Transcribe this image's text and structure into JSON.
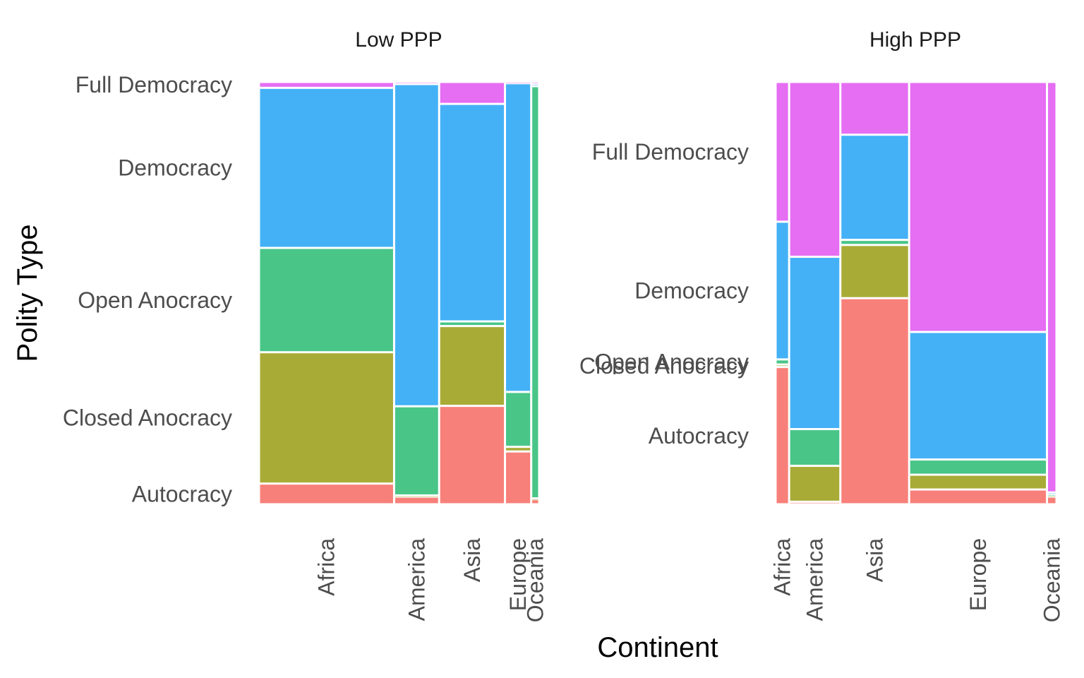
{
  "chart_data": {
    "type": "mosaic",
    "xlabel": "Continent",
    "ylabel": "Polity Type",
    "levels": [
      "Autocracy",
      "Closed Anocracy",
      "Open Anocracy",
      "Democracy",
      "Full Democracy"
    ],
    "colors": {
      "Autocracy": "#F8807A",
      "Closed Anocracy": "#A8AB36",
      "Open Anocracy": "#48C587",
      "Democracy": "#44B1F6",
      "Full Democracy": "#E56EF2"
    },
    "facets": [
      {
        "title": "Low PPP",
        "continents": [
          {
            "name": "Africa",
            "width": 0.474,
            "shares": [
              0.049,
              0.311,
              0.247,
              0.379,
              0.014
            ]
          },
          {
            "name": "America",
            "width": 0.158,
            "shares": [
              0.018,
              0.003,
              0.211,
              0.763,
              0.005
            ]
          },
          {
            "name": "Asia",
            "width": 0.231,
            "shares": [
              0.233,
              0.189,
              0.011,
              0.515,
              0.052
            ]
          },
          {
            "name": "Europe",
            "width": 0.092,
            "shares": [
              0.125,
              0.011,
              0.13,
              0.731,
              0.003
            ]
          },
          {
            "name": "Oceania",
            "width": 0.028,
            "shares": [
              0.012,
              0.002,
              0.976,
              0.005,
              0.005
            ]
          }
        ]
      },
      {
        "title": "High PPP",
        "continents": [
          {
            "name": "Africa",
            "width": 0.047,
            "shares": [
              0.325,
              0.006,
              0.012,
              0.326,
              0.331
            ]
          },
          {
            "name": "America",
            "width": 0.178,
            "shares": [
              0.006,
              0.085,
              0.087,
              0.408,
              0.414
            ]
          },
          {
            "name": "Asia",
            "width": 0.239,
            "shares": [
              0.488,
              0.126,
              0.012,
              0.249,
              0.125
            ]
          },
          {
            "name": "Europe",
            "width": 0.479,
            "shares": [
              0.035,
              0.035,
              0.036,
              0.302,
              0.592
            ]
          },
          {
            "name": "Oceania",
            "width": 0.033,
            "shares": [
              0.018,
              0.003,
              0.003,
              0.004,
              0.972
            ]
          }
        ]
      }
    ]
  }
}
